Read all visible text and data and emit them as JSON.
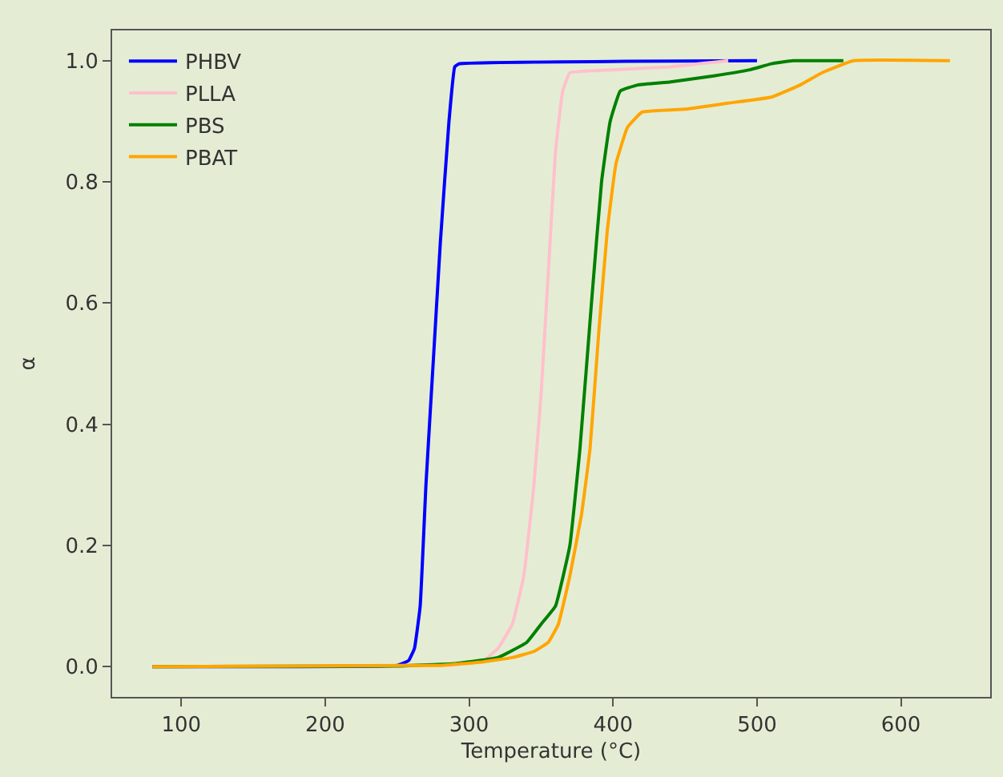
{
  "chart_data": {
    "type": "line",
    "xlabel": "Temperature (°C)",
    "ylabel": "α",
    "xlim": [
      52,
      662
    ],
    "xticks": [
      100,
      200,
      300,
      400,
      500,
      600
    ],
    "ylim": [
      -0.05,
      1.05
    ],
    "yticks": [
      {
        "value": 0,
        "label": "0.0"
      },
      {
        "value": 0.2,
        "label": "0.2"
      },
      {
        "value": 0.4,
        "label": "0.4"
      },
      {
        "value": 0.6,
        "label": "0.6"
      },
      {
        "value": 0.8,
        "label": "0.8"
      },
      {
        "value": 1,
        "label": "1.0"
      }
    ],
    "grid": false,
    "legend": "top left",
    "marker": "none",
    "line_style": "solid",
    "series": [
      {
        "name": "PHBV",
        "color": "#0000ff",
        "x": [
          80,
          250,
          258,
          262,
          266,
          270,
          275,
          280,
          286,
          290,
          293,
          500
        ],
        "values": [
          0,
          0.002,
          0.01,
          0.03,
          0.1,
          0.3,
          0.5,
          0.7,
          0.9,
          0.99,
          0.995,
          1.0
        ]
      },
      {
        "name": "PLLA",
        "color": "#ffc0cb",
        "x": [
          80,
          290,
          310,
          320,
          330,
          338,
          345,
          350,
          355,
          360,
          365,
          370,
          400,
          440,
          480
        ],
        "values": [
          0,
          0.003,
          0.01,
          0.03,
          0.07,
          0.15,
          0.3,
          0.45,
          0.65,
          0.85,
          0.95,
          0.98,
          0.985,
          0.99,
          1.0
        ]
      },
      {
        "name": "PBS",
        "color": "#008000",
        "x": [
          80,
          250,
          290,
          320,
          340,
          350,
          360,
          370,
          377,
          385,
          392,
          398,
          405,
          417,
          440,
          470,
          495,
          510,
          525,
          560
        ],
        "values": [
          0,
          0.001,
          0.005,
          0.015,
          0.04,
          0.07,
          0.1,
          0.2,
          0.36,
          0.6,
          0.8,
          0.9,
          0.95,
          0.96,
          0.965,
          0.975,
          0.985,
          0.995,
          1.0,
          1.0
        ]
      },
      {
        "name": "PBAT",
        "color": "#ffa500",
        "x": [
          80,
          280,
          310,
          330,
          345,
          355,
          362,
          370,
          378,
          384,
          390,
          396,
          402,
          410,
          420,
          450,
          480,
          510,
          530,
          545,
          567,
          634
        ],
        "values": [
          0,
          0.002,
          0.008,
          0.015,
          0.025,
          0.04,
          0.07,
          0.15,
          0.25,
          0.36,
          0.55,
          0.72,
          0.83,
          0.89,
          0.915,
          0.92,
          0.93,
          0.94,
          0.96,
          0.98,
          1.0,
          1.0
        ]
      }
    ]
  }
}
